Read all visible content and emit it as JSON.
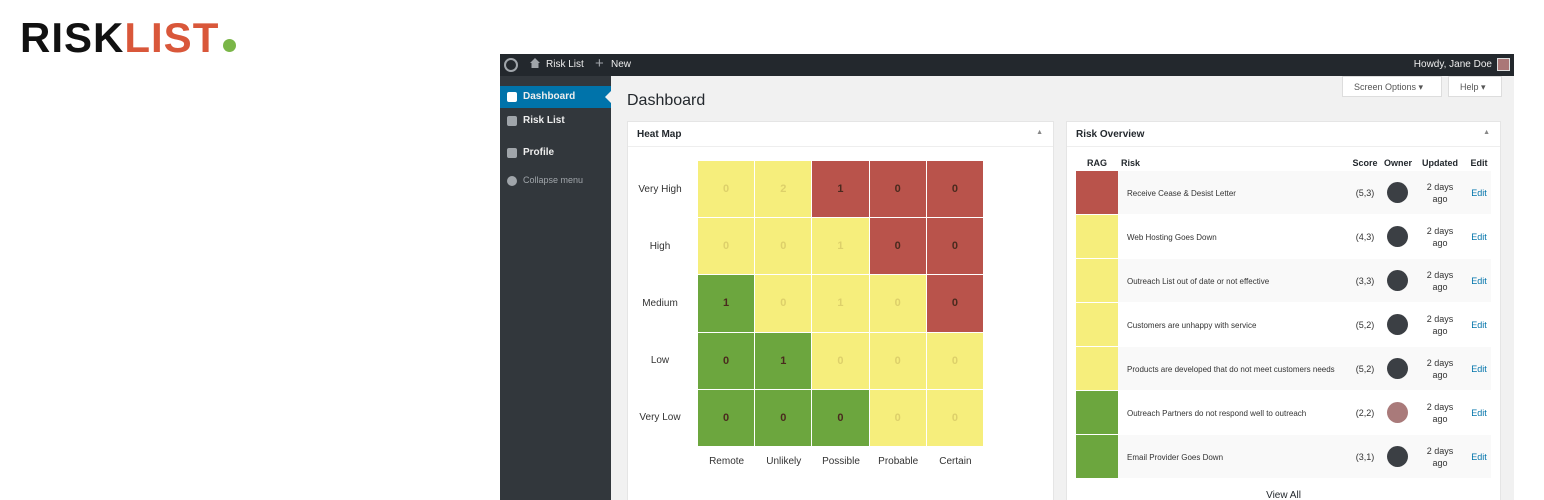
{
  "logo": {
    "part1": "RISK",
    "part2": "LIST"
  },
  "admin_bar": {
    "site": "Risk List",
    "new": "New",
    "greeting": "Howdy, Jane Doe"
  },
  "menu": [
    "Dashboard",
    "Risk List",
    "Profile",
    "Collapse menu"
  ],
  "screen_options": "Screen Options",
  "help": "Help",
  "page_title": "Dashboard",
  "colors": {
    "red": "#b9534b",
    "amber": "#f6ee7c",
    "green": "#6ca63e"
  },
  "heat_map": {
    "title": "Heat Map",
    "rows": [
      "Very High",
      "High",
      "Medium",
      "Low",
      "Very Low"
    ],
    "columns": [
      "Remote",
      "Unlikely",
      "Possible",
      "Probable",
      "Certain"
    ],
    "counts": [
      [
        0,
        2,
        1,
        0,
        0
      ],
      [
        0,
        0,
        1,
        0,
        0
      ],
      [
        1,
        0,
        1,
        0,
        0
      ],
      [
        0,
        1,
        0,
        0,
        0
      ],
      [
        0,
        0,
        0,
        0,
        0
      ]
    ],
    "levels": [
      [
        "amber",
        "amber",
        "red",
        "red",
        "red"
      ],
      [
        "amber",
        "amber",
        "amber",
        "red",
        "red"
      ],
      [
        "green",
        "amber",
        "amber",
        "amber",
        "red"
      ],
      [
        "green",
        "green",
        "amber",
        "amber",
        "amber"
      ],
      [
        "green",
        "green",
        "green",
        "amber",
        "amber"
      ]
    ]
  },
  "risk_overview": {
    "title": "Risk Overview",
    "columns": [
      "RAG",
      "Risk",
      "Score",
      "Owner",
      "Updated",
      "Edit"
    ],
    "rows": [
      {
        "rag": "red",
        "risk": "Receive Cease & Desist Letter",
        "score": "(5,3)",
        "updated": "2 days ago",
        "edit": "Edit"
      },
      {
        "rag": "amber",
        "risk": "Web Hosting Goes Down",
        "score": "(4,3)",
        "updated": "2 days ago",
        "edit": "Edit"
      },
      {
        "rag": "amber",
        "risk": "Outreach List out of date or not effective",
        "score": "(3,3)",
        "updated": "2 days ago",
        "edit": "Edit"
      },
      {
        "rag": "amber",
        "risk": "Customers are unhappy with service",
        "score": "(5,2)",
        "updated": "2 days ago",
        "edit": "Edit"
      },
      {
        "rag": "amber",
        "risk": "Products are developed that do not meet customers needs",
        "score": "(5,2)",
        "updated": "2 days ago",
        "edit": "Edit"
      },
      {
        "rag": "green",
        "risk": "Outreach Partners do not respond well to outreach",
        "score": "(2,2)",
        "updated": "2 days ago",
        "edit": "Edit"
      },
      {
        "rag": "green",
        "risk": "Email Provider Goes Down",
        "score": "(3,1)",
        "updated": "2 days ago",
        "edit": "Edit"
      }
    ],
    "view_all": "View All"
  }
}
